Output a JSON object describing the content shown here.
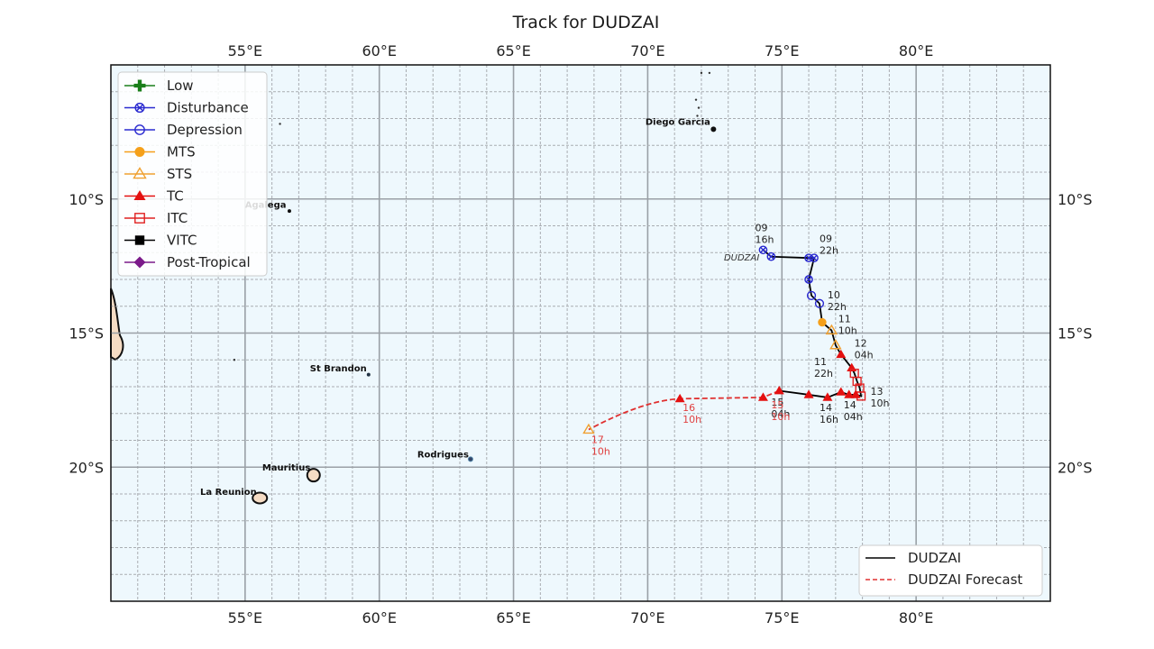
{
  "figure": {
    "title": "Track for DUDZAI"
  },
  "chart_data": {
    "type": "map-track",
    "title": "Track for DUDZAI",
    "extent": {
      "lon_min": 50,
      "lon_max": 85,
      "lat_min": -25,
      "lat_max": -5
    },
    "x_ticks": [
      55,
      60,
      65,
      70,
      75,
      80
    ],
    "x_tick_labels": [
      "55°E",
      "60°E",
      "65°E",
      "70°E",
      "75°E",
      "80°E"
    ],
    "y_ticks": [
      -10,
      -15,
      -20
    ],
    "y_tick_labels": [
      "10°S",
      "15°S",
      "20°S"
    ],
    "grid": {
      "major_step_deg": 5,
      "minor_step_deg": 1,
      "major_style": "solid",
      "minor_style": "dashed"
    },
    "colors": {
      "ocean": "#eef8fd",
      "land": "#f5dcc4",
      "major_grid": "#9aa0a6",
      "minor_grid": "#a9adb2",
      "track": "#000000",
      "forecast": "#e03030"
    },
    "intensity_legend": [
      {
        "label": "Low",
        "marker": "plus",
        "color": "#1a7f1a"
      },
      {
        "label": "Disturbance",
        "marker": "x-circle",
        "color": "#2a2ad0"
      },
      {
        "label": "Depression",
        "marker": "theta-circle",
        "color": "#2a2ad0"
      },
      {
        "label": "MTS",
        "marker": "filled-circle",
        "color": "#f5a01a"
      },
      {
        "label": "STS",
        "marker": "open-triangle",
        "color": "#f0a030"
      },
      {
        "label": "TC",
        "marker": "filled-triangle",
        "color": "#e41010"
      },
      {
        "label": "ITC",
        "marker": "open-square",
        "color": "#e02020"
      },
      {
        "label": "VITC",
        "marker": "filled-square",
        "color": "#000000"
      },
      {
        "label": "Post-Tropical",
        "marker": "diamond",
        "color": "#7b1a8a"
      }
    ],
    "track_legend": [
      {
        "label": "DUDZAI",
        "style": "solid",
        "color": "#000000"
      },
      {
        "label": "DUDZAI Forecast",
        "style": "dashed",
        "color": "#e03030"
      }
    ],
    "storm_label": {
      "text": "DUDZAI",
      "lon": 73.5,
      "lat": -12.3
    },
    "observed_track": [
      {
        "lon": 74.3,
        "lat": -11.9,
        "cat": "Disturbance"
      },
      {
        "lon": 74.6,
        "lat": -12.15,
        "cat": "Disturbance"
      },
      {
        "lon": 76.0,
        "lat": -12.2,
        "cat": "Disturbance"
      },
      {
        "lon": 76.2,
        "lat": -12.2,
        "cat": "Disturbance"
      },
      {
        "lon": 76.0,
        "lat": -13.0,
        "cat": "Disturbance"
      },
      {
        "lon": 76.1,
        "lat": -13.6,
        "cat": "Depression"
      },
      {
        "lon": 76.4,
        "lat": -13.9,
        "cat": "Depression"
      },
      {
        "lon": 76.5,
        "lat": -14.6,
        "cat": "MTS"
      },
      {
        "lon": 76.85,
        "lat": -14.9,
        "cat": "STS"
      },
      {
        "lon": 77.0,
        "lat": -15.45,
        "cat": "STS"
      },
      {
        "lon": 77.2,
        "lat": -15.8,
        "cat": "TC"
      },
      {
        "lon": 77.6,
        "lat": -16.3,
        "cat": "TC"
      },
      {
        "lon": 77.7,
        "lat": -16.5,
        "cat": "ITC"
      },
      {
        "lon": 77.8,
        "lat": -16.8,
        "cat": "ITC"
      },
      {
        "lon": 77.9,
        "lat": -17.05,
        "cat": "ITC"
      },
      {
        "lon": 77.95,
        "lat": -17.35,
        "cat": "ITC"
      },
      {
        "lon": 77.75,
        "lat": -17.3,
        "cat": "TC"
      },
      {
        "lon": 77.5,
        "lat": -17.3,
        "cat": "TC"
      },
      {
        "lon": 77.2,
        "lat": -17.2,
        "cat": "TC"
      },
      {
        "lon": 76.7,
        "lat": -17.4,
        "cat": "TC"
      },
      {
        "lon": 76.0,
        "lat": -17.3,
        "cat": "TC"
      },
      {
        "lon": 74.9,
        "lat": -17.15,
        "cat": "TC"
      }
    ],
    "forecast_track": [
      {
        "lon": 74.9,
        "lat": -17.15,
        "cat": "TC"
      },
      {
        "lon": 74.3,
        "lat": -17.4,
        "cat": "TC"
      },
      {
        "lon": 71.2,
        "lat": -17.45,
        "cat": "TC"
      },
      {
        "lon": 67.8,
        "lat": -18.6,
        "cat": "STS"
      }
    ],
    "time_labels": [
      {
        "day": "09",
        "hour": "16h",
        "lon": 74.0,
        "lat": -11.2,
        "forecast": false
      },
      {
        "day": "09",
        "hour": "22h",
        "lon": 76.4,
        "lat": -11.6,
        "forecast": false
      },
      {
        "day": "10",
        "hour": "22h",
        "lon": 76.7,
        "lat": -13.7,
        "forecast": false
      },
      {
        "day": "11",
        "hour": "10h",
        "lon": 77.1,
        "lat": -14.6,
        "forecast": false
      },
      {
        "day": "11",
        "hour": "22h",
        "lon": 76.2,
        "lat": -16.2,
        "forecast": false
      },
      {
        "day": "12",
        "hour": "04h",
        "lon": 77.7,
        "lat": -15.5,
        "forecast": false
      },
      {
        "day": "13",
        "hour": "10h",
        "lon": 78.3,
        "lat": -17.3,
        "forecast": false
      },
      {
        "day": "14",
        "hour": "04h",
        "lon": 77.3,
        "lat": -17.8,
        "forecast": false
      },
      {
        "day": "14",
        "hour": "16h",
        "lon": 76.4,
        "lat": -17.9,
        "forecast": false
      },
      {
        "day": "15",
        "hour": "04h",
        "lon": 74.6,
        "lat": -17.7,
        "forecast": false
      },
      {
        "day": "15",
        "hour": "10h",
        "lon": 74.6,
        "lat": -17.8,
        "forecast": true
      },
      {
        "day": "16",
        "hour": "10h",
        "lon": 71.3,
        "lat": -17.9,
        "forecast": true
      },
      {
        "day": "17",
        "hour": "10h",
        "lon": 67.9,
        "lat": -19.1,
        "forecast": true
      }
    ],
    "places": [
      {
        "name": "Diego Garcia",
        "lon": 72.4,
        "lat": -7.3
      },
      {
        "name": "Agalega",
        "lon": 56.6,
        "lat": -10.4
      },
      {
        "name": "St Brandon",
        "lon": 59.6,
        "lat": -16.5
      },
      {
        "name": "Rodrigues",
        "lon": 63.4,
        "lat": -19.7
      },
      {
        "name": "Mauritius",
        "lon": 57.5,
        "lat": -20.2
      },
      {
        "name": "La Reunion",
        "lon": 55.5,
        "lat": -21.1
      }
    ]
  }
}
